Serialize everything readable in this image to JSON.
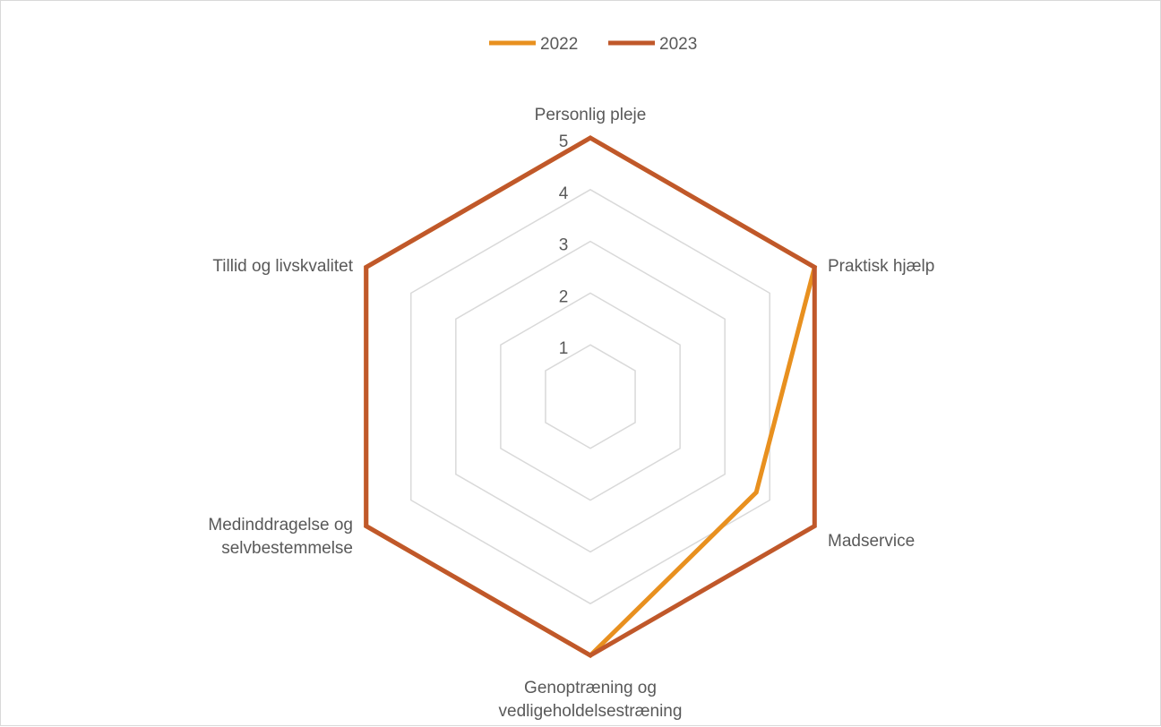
{
  "chart_data": {
    "type": "radar",
    "categories": [
      "Personlig pleje",
      "Praktisk hjælp",
      "Madservice",
      "Genoptræning og vedligeholdelsestræning",
      "Medinddragelse og selvbestemmelse",
      "Tillid og livskvalitet"
    ],
    "category_lines": [
      [
        "Personlig pleje"
      ],
      [
        "Praktisk hjælp"
      ],
      [
        "Madservice"
      ],
      [
        "Genoptræning og",
        "vedligeholdelsestræning"
      ],
      [
        "Medinddragelse og",
        "selvbestemmelse"
      ],
      [
        "Tillid og livskvalitet"
      ]
    ],
    "radial_ticks": [
      "1",
      "2",
      "3",
      "4",
      "5"
    ],
    "rmin": 1,
    "rmax": 5,
    "series": [
      {
        "name": "2022",
        "color": "#e8901f",
        "values": [
          5,
          5,
          3.7,
          5,
          5,
          5
        ]
      },
      {
        "name": "2023",
        "color": "#c0582a",
        "values": [
          5,
          5,
          5,
          5,
          5,
          5
        ]
      }
    ],
    "grid": true,
    "legend_position": "top-center"
  }
}
